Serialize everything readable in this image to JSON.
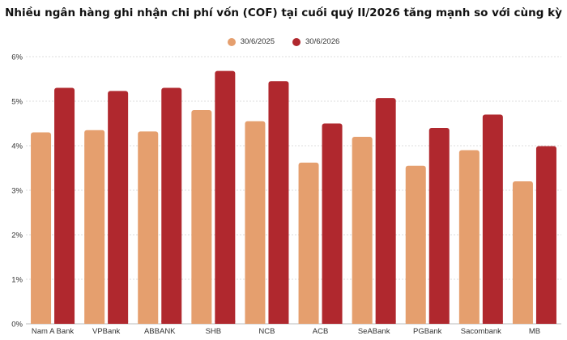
{
  "chart_data": {
    "type": "bar",
    "title": "Nhiều ngân hàng ghi nhận chi phí vốn (COF) tại cuối quý II/2026 tăng mạnh so với cùng kỳ",
    "categories": [
      "Nam A Bank",
      "VPBank",
      "ABBANK",
      "SHB",
      "NCB",
      "ACB",
      "SeABank",
      "PGBank",
      "Sacombank",
      "MB"
    ],
    "series": [
      {
        "name": "30/6/2025",
        "color": "#E59F6E",
        "values": [
          4.3,
          4.35,
          4.32,
          4.8,
          4.55,
          3.62,
          4.2,
          3.55,
          3.9,
          3.2
        ]
      },
      {
        "name": "30/6/2026",
        "color": "#B0282E",
        "values": [
          5.3,
          5.23,
          5.3,
          5.68,
          5.45,
          4.5,
          5.07,
          4.4,
          4.7,
          3.99
        ]
      }
    ],
    "ylim": [
      0,
      6
    ],
    "yticks": [
      0,
      1,
      2,
      3,
      4,
      5,
      6
    ],
    "ytick_labels": [
      "0%",
      "1%",
      "2%",
      "3%",
      "4%",
      "5%",
      "6%"
    ],
    "xlabel": "",
    "ylabel": "",
    "legend_position": "top-center",
    "grid": true
  }
}
